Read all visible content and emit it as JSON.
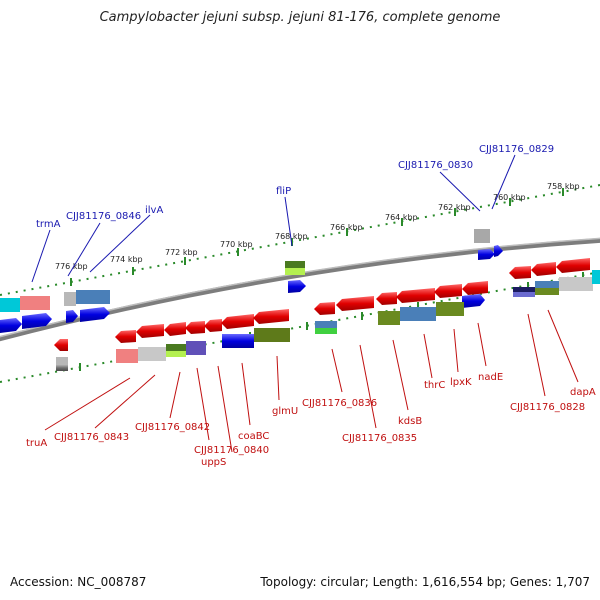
{
  "title": "Campylobacter jejuni subsp. jejuni 81-176, complete genome",
  "footer": {
    "accession": "Accession: NC_008787",
    "stats": "Topology: circular; Length: 1,616,554 bp; Genes: 1,707"
  },
  "ruler_ticks": [
    "776 kbp",
    "774 kbp",
    "772 kbp",
    "770 kbp",
    "768 kbp",
    "766 kbp",
    "764 kbp",
    "762 kbp",
    "760 kbp",
    "758 kbp"
  ],
  "labels_top": [
    "trmA",
    "CJJ81176_0846",
    "ilvA",
    "fliP",
    "CJJ81176_0830",
    "CJJ81176_0829"
  ],
  "labels_bottom": [
    "truA",
    "CJJ81176_0843",
    "CJJ81176_0842",
    "CJJ81176_0840",
    "uppS",
    "coaBC",
    "glmU",
    "CJJ81176_0836",
    "CJJ81176_0835",
    "kdsB",
    "thrC",
    "lpxK",
    "nadE",
    "CJJ81176_0828",
    "dapA"
  ],
  "colors": {
    "forward_gene": "#1010e0",
    "reverse_gene": "#e01010",
    "top_label": "#1a1ab0",
    "bottom_label": "#c01010",
    "backbone": "#808080",
    "ruler": "#2a8a2a"
  }
}
